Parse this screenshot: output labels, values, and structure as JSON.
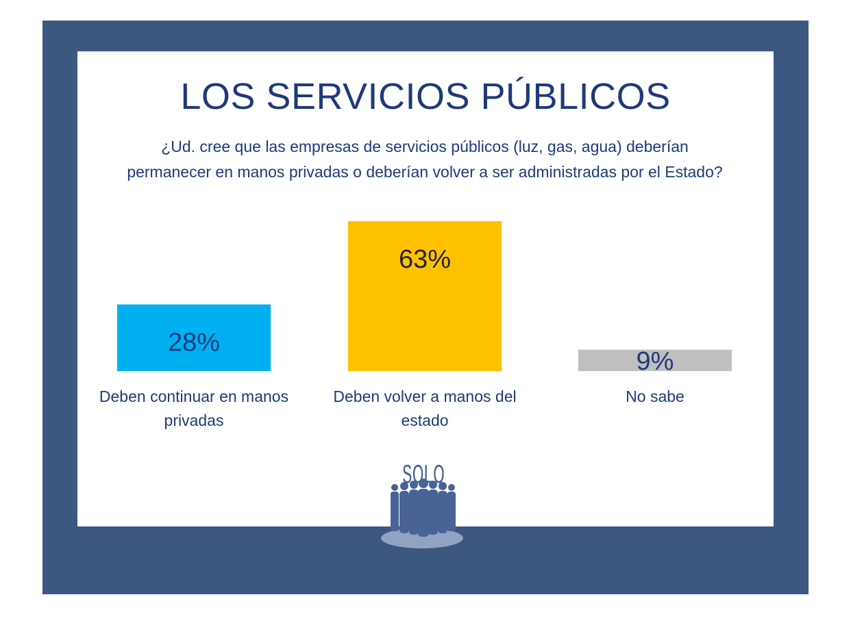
{
  "title": "LOS SERVICIOS PÚBLICOS",
  "question": "¿Ud. cree que las empresas de servicios públicos (luz, gas, agua) deberían permanecer en manos privadas o deberían volver a ser administradas por el Estado?",
  "logo_text": "SOLO",
  "colors": {
    "frame": "#3c5780",
    "title": "#1f3a7a",
    "bar_privadas": "#00b0f0",
    "bar_estado": "#ffc000",
    "bar_nosabe": "#bfbfbf"
  },
  "chart_data": {
    "type": "bar",
    "categories": [
      [
        "Deben continuar en manos",
        "privadas"
      ],
      [
        "Deben volver a manos del",
        "estado"
      ],
      [
        "No sabe"
      ]
    ],
    "values": [
      28,
      63,
      9
    ],
    "value_labels": [
      "28%",
      "63%",
      "9%"
    ],
    "bar_colors": [
      "#00b0f0",
      "#ffc000",
      "#bfbfbf"
    ],
    "title": "LOS SERVICIOS PÚBLICOS",
    "xlabel": "",
    "ylabel": "",
    "grid": false,
    "legend": "none"
  }
}
